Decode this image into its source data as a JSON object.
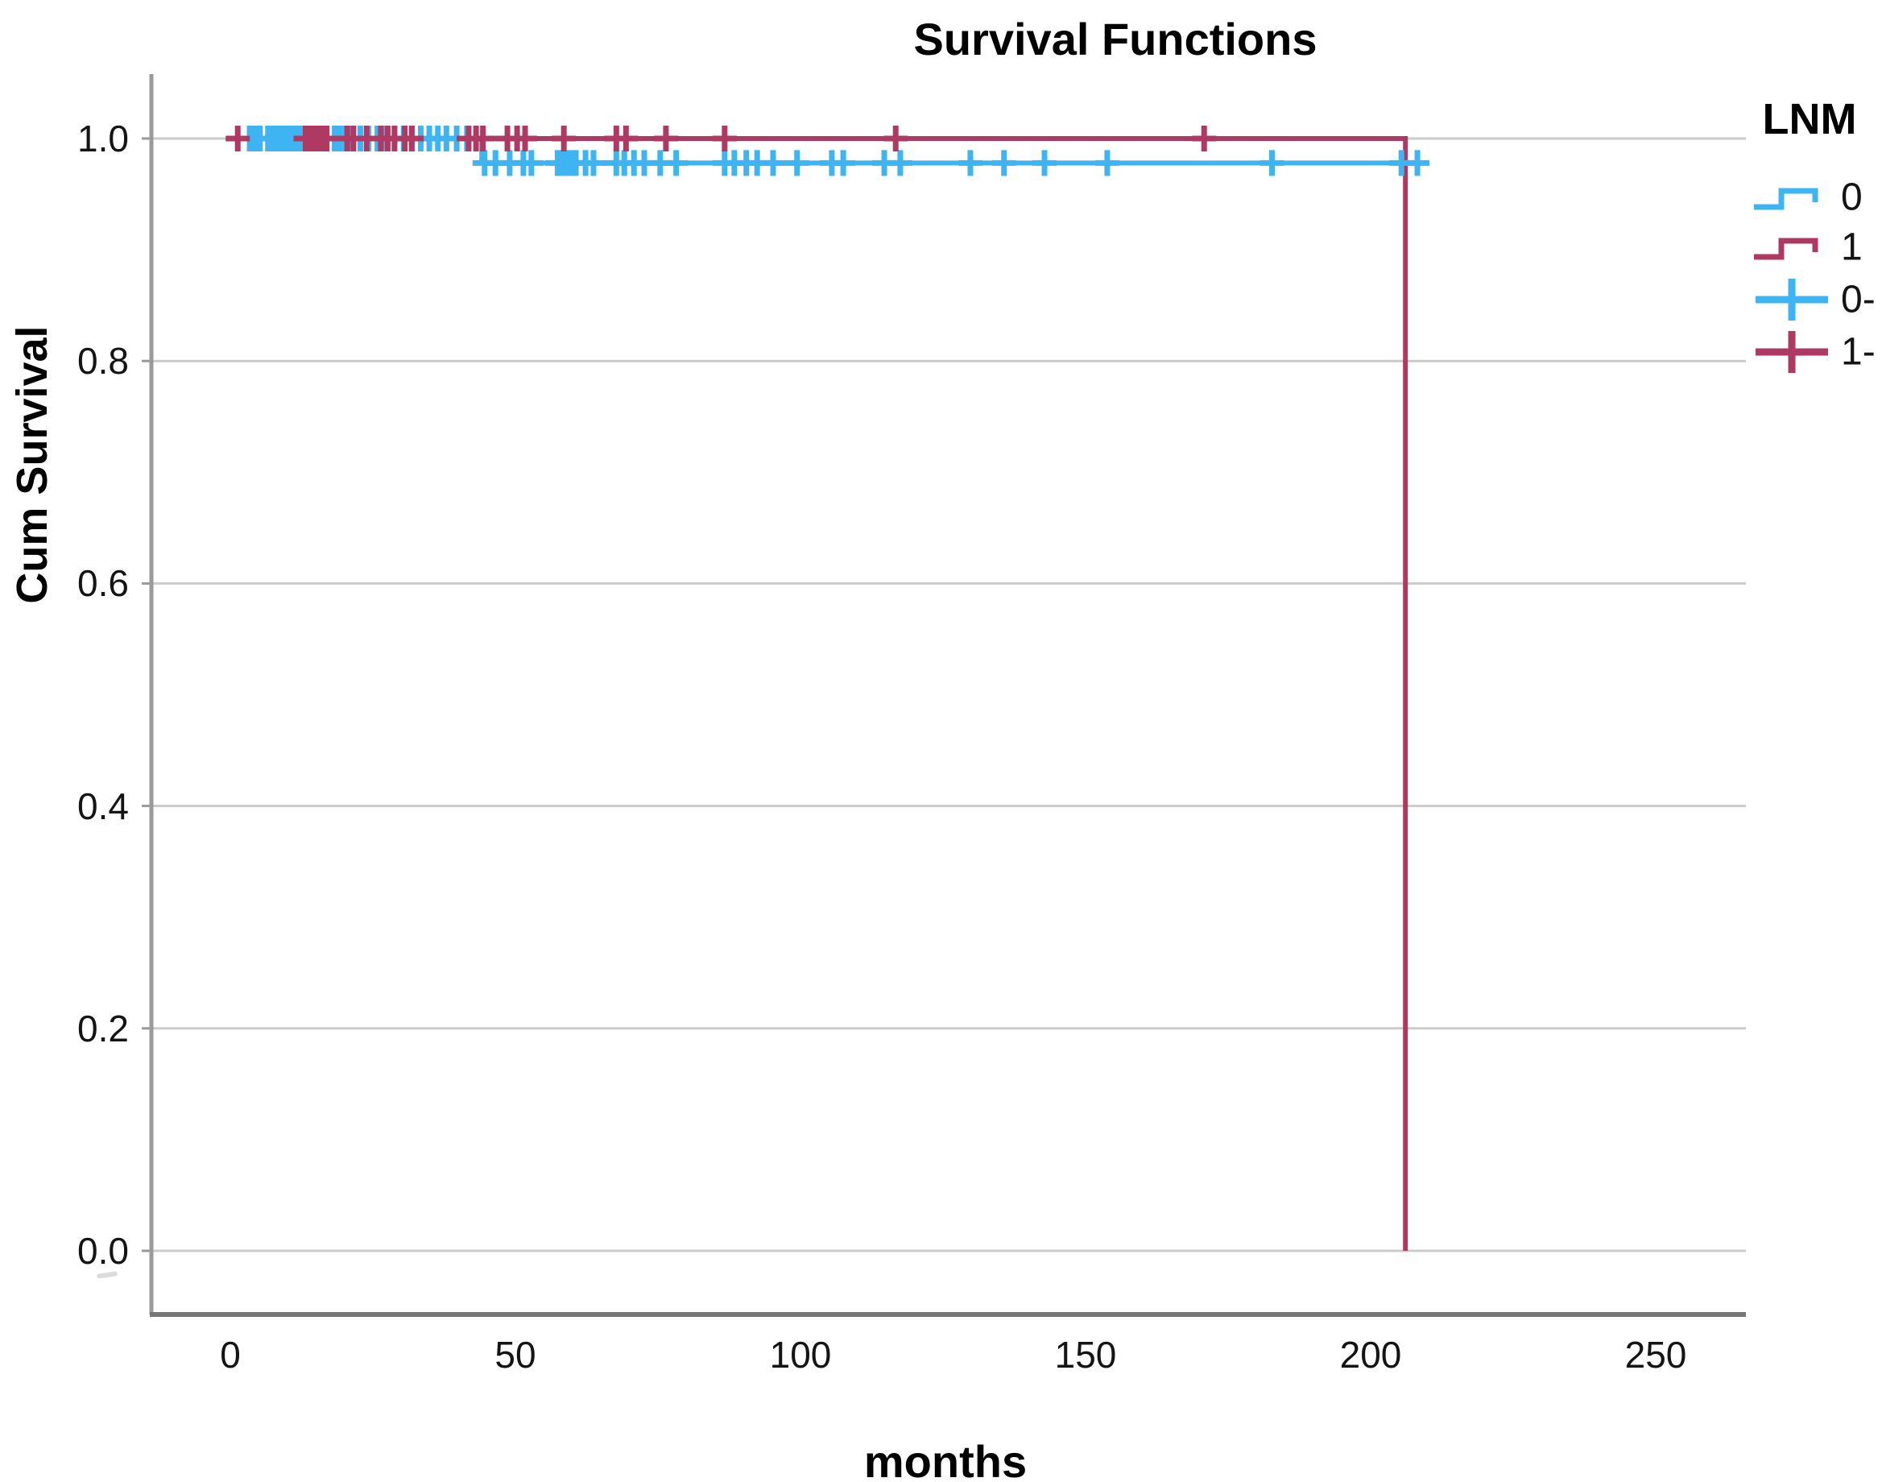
{
  "chart_data": {
    "type": "line",
    "subtype": "kaplan-meier-step",
    "title": "Survival Functions",
    "xlabel": "months",
    "ylabel": "Cum Survival",
    "xticks": [
      0,
      50,
      100,
      150,
      200,
      250
    ],
    "yticks": [
      {
        "label": "0.0",
        "value": 0.0
      },
      {
        "label": "0.2",
        "value": 0.2
      },
      {
        "label": "0.4",
        "value": 0.4
      },
      {
        "label": "0.6",
        "value": 0.6
      },
      {
        "label": "0.8",
        "value": 0.8
      },
      {
        "label": "1.0",
        "value": 1.0
      }
    ],
    "xlim": [
      -14,
      266
    ],
    "ylim": [
      0.0,
      1.0
    ],
    "grid": "horizontal",
    "colors": {
      "group0": "#3fb4f2",
      "group1": "#ae3a63",
      "gridline": "#cbcbcb",
      "axis": "#9a9a9a",
      "frame": "#757575",
      "text": "#000000"
    },
    "legend": {
      "title": "LNM",
      "position": "top-right-outside",
      "entries": [
        {
          "label": "0",
          "marker": "step",
          "color": "#3fb4f2"
        },
        {
          "label": "1",
          "marker": "step",
          "color": "#ae3a63"
        },
        {
          "label": "0-",
          "marker": "plus",
          "color": "#3fb4f2"
        },
        {
          "label": "1-",
          "marker": "plus",
          "color": "#ae3a63"
        }
      ]
    },
    "series": [
      {
        "name": "1",
        "color": "#ae3a63",
        "step_points": [
          [
            0.5,
            1.0
          ],
          [
            206.1,
            1.0
          ],
          [
            206.1,
            0.0
          ]
        ]
      },
      {
        "name": "0",
        "color": "#3fb4f2",
        "step_points": [
          [
            0.5,
            1.0
          ],
          [
            44.1,
            1.0
          ],
          [
            44.1,
            0.978
          ],
          [
            210.0,
            0.978
          ]
        ]
      }
    ],
    "censored": [
      {
        "group": "0",
        "color": "#3fb4f2",
        "level": 1.0,
        "months": [
          3.4,
          4.3,
          5.2,
          6.6,
          7.1,
          7.7,
          8.3,
          8.9,
          9.5,
          10.1,
          10.7,
          11.3,
          11.9,
          12.5,
          18.3,
          19.2,
          20.2,
          21.2,
          22.8,
          24.2,
          25.8,
          27.2,
          28.8,
          30.4,
          31.9,
          33.4,
          34.9,
          36.4,
          37.9,
          39.7,
          41.5
        ]
      },
      {
        "group": "0",
        "color": "#3fb4f2",
        "level": 0.978,
        "months": [
          44.6,
          46.5,
          49.0,
          51.4,
          52.8,
          57.4,
          58.2,
          59.0,
          59.8,
          60.6,
          62.3,
          63.7,
          67.7,
          69.1,
          70.8,
          72.6,
          75.4,
          78.2,
          86.7,
          88.4,
          90.5,
          92.4,
          95.2,
          99.4,
          105.5,
          107.5,
          114.7,
          117.5,
          129.8,
          135.7,
          142.8,
          153.8,
          182.7,
          205.4,
          208.2
        ]
      },
      {
        "group": "1",
        "color": "#ae3a63",
        "level": 1.0,
        "months": [
          1.3,
          13.2,
          13.9,
          14.6,
          15.3,
          16.1,
          16.9,
          20.5,
          21.6,
          23.9,
          26.4,
          27.6,
          28.8,
          30.6,
          31.8,
          41.8,
          43.1,
          44.3,
          48.6,
          50.3,
          51.7,
          58.5,
          67.7,
          69.4,
          76.4,
          86.7,
          116.7,
          170.8
        ]
      }
    ]
  }
}
